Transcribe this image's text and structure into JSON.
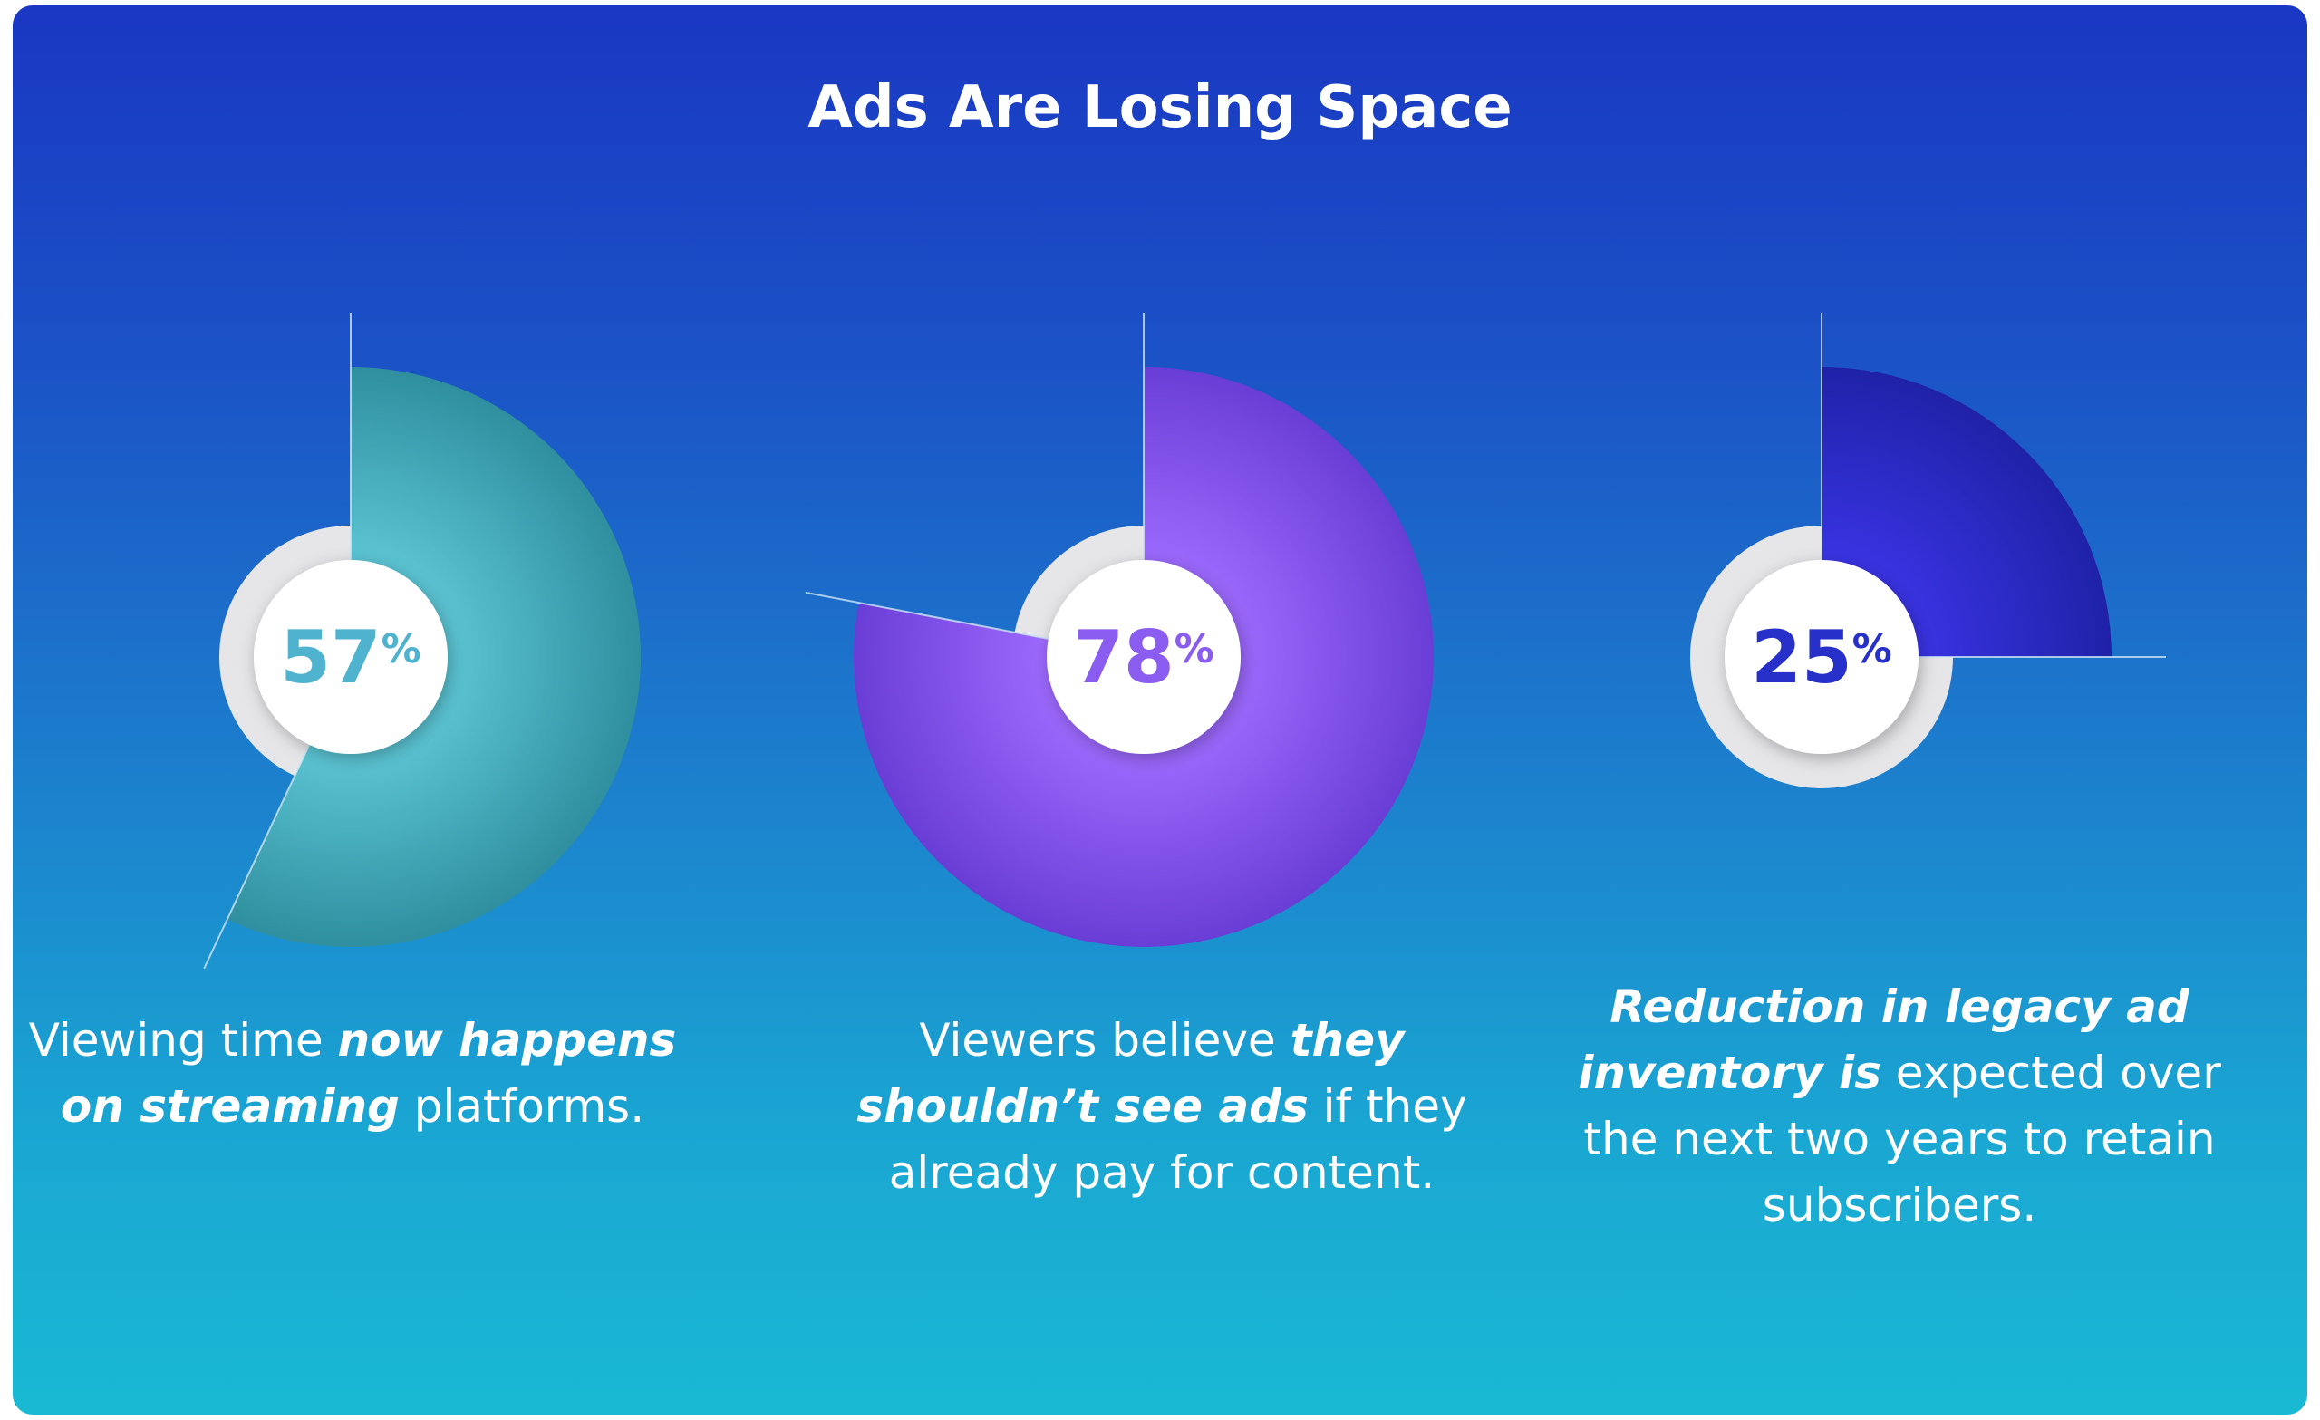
{
  "title": "Ads Are Losing Space",
  "chart_data": {
    "type": "pie",
    "title": "Ads Are Losing Space",
    "charts": [
      {
        "value": 57,
        "label": "57",
        "unit": "%",
        "color_light": "#5ec7d6",
        "color_dark": "#2f8f9f",
        "text_color": "#4fb3d0",
        "caption": [
          {
            "text": "Viewing time ",
            "emph": false
          },
          {
            "text": "now happens on streaming",
            "emph": true
          },
          {
            "text": " platforms.",
            "emph": false
          }
        ]
      },
      {
        "value": 78,
        "label": "78",
        "unit": "%",
        "color_light": "#9f6bff",
        "color_dark": "#6a3ed6",
        "text_color": "#8a5cf0",
        "caption": [
          {
            "text": "Viewers believe ",
            "emph": false
          },
          {
            "text": "they shouldn’t see ads",
            "emph": true
          },
          {
            "text": " if they already pay for content.",
            "emph": false
          }
        ]
      },
      {
        "value": 25,
        "label": "25",
        "unit": "%",
        "color_light": "#3b34e6",
        "color_dark": "#1f22a8",
        "text_color": "#2730c8",
        "caption": [
          {
            "text": "Reduction in legacy ad inventory is",
            "emph": true
          },
          {
            "text": " expected over the next two years to retain subscribers.",
            "emph": false
          }
        ]
      }
    ]
  }
}
